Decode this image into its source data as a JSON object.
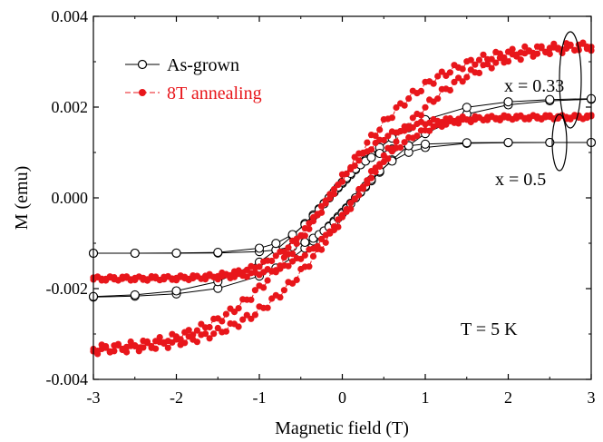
{
  "chart_data": {
    "type": "scatter",
    "title": "",
    "xlabel": "Magnetic field (T)",
    "ylabel": "M (emu)",
    "xlim": [
      -3,
      3
    ],
    "ylim": [
      -0.004,
      0.004
    ],
    "grid": false,
    "legend_position": "top-left",
    "x_ticks": [
      -3,
      -2,
      -1,
      0,
      1,
      2,
      3
    ],
    "x_tick_labels": [
      "-3",
      "-2",
      "-1",
      "0",
      "1",
      "2",
      "3"
    ],
    "y_ticks": [
      -0.004,
      -0.002,
      0.0,
      0.002,
      0.004
    ],
    "y_tick_labels": [
      "-0.004",
      "-0.002",
      "0.000",
      "0.002",
      "0.004"
    ],
    "legend": [
      {
        "label": "As-grown",
        "color": "#000000",
        "marker": "open-circle"
      },
      {
        "label": "8T annealing",
        "color": "#e8161b",
        "marker": "filled-circle"
      }
    ],
    "annotations": {
      "x033": "x = 0.33",
      "x05": "x = 0.5",
      "temperature": "T = 5 K"
    },
    "series": [
      {
        "group": "As-grown",
        "sample": "x = 0.33",
        "color": "#000000",
        "marker": "open-circle",
        "Ms": 0.0022,
        "Hc": 0.16,
        "Hs": 1.1
      },
      {
        "group": "As-grown",
        "sample": "x = 0.5",
        "color": "#000000",
        "marker": "open-circle",
        "Ms": 0.00122,
        "Hc": 0.16,
        "Hs": 0.55
      },
      {
        "group": "8T annealing",
        "sample": "x = 0.33",
        "color": "#e8161b",
        "marker": "filled-circle",
        "Ms": 0.0034,
        "Hc": 0.16,
        "Hs": 1.25
      },
      {
        "group": "8T annealing",
        "sample": "x = 0.5",
        "color": "#e8161b",
        "marker": "filled-circle",
        "Ms": 0.00178,
        "Hc": 0.16,
        "Hs": 0.7
      }
    ]
  }
}
